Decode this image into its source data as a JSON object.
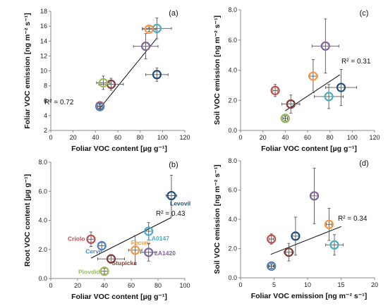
{
  "colors": {
    "Levovil": "#1f4e79",
    "LA0147": "#4bacc6",
    "Fecum": "#f79646",
    "LA1420": "#8064a2",
    "Criolo": "#c0504d",
    "Cervil": "#4f81bd",
    "Stupicke": "#843c39",
    "Plovdid": "#9bbb59"
  },
  "chart_data": [
    {
      "panel": "(a)",
      "type": "scatter",
      "xlabel": "Foliar VOC content [µg g⁻¹]",
      "ylabel": "Foliar VOC emission [ng m⁻² s⁻¹]",
      "xlim": [
        0,
        120
      ],
      "ylim": [
        2,
        18
      ],
      "xticks": [
        0,
        20,
        40,
        60,
        80,
        100,
        120
      ],
      "yticks": [
        2,
        4,
        6,
        8,
        10,
        12,
        14,
        16,
        18
      ],
      "r2": "R² = 0.72",
      "trend": [
        [
          44,
          5.0
        ],
        [
          95,
          14.4
        ]
      ],
      "points": [
        {
          "cultivar": "Levovil",
          "x": 95,
          "y": 9.5,
          "xerr": 10,
          "yerr": 0.9
        },
        {
          "cultivar": "LA0147",
          "x": 95,
          "y": 15.7,
          "xerr": 13,
          "yerr": 1.4
        },
        {
          "cultivar": "Fecum",
          "x": 88,
          "y": 15.6,
          "xerr": 6,
          "yerr": 0.3
        },
        {
          "cultivar": "LA1420",
          "x": 85,
          "y": 13.3,
          "xerr": 11,
          "yerr": 1.7
        },
        {
          "cultivar": "Stupicke",
          "x": 54,
          "y": 8.2,
          "xerr": 11,
          "yerr": 0.8
        },
        {
          "cultivar": "Plovdid",
          "x": 47,
          "y": 8.4,
          "xerr": 6,
          "yerr": 0.9
        },
        {
          "cultivar": "Criolo",
          "x": 44,
          "y": 5.3,
          "xerr": 3,
          "yerr": 0.3
        },
        {
          "cultivar": "Cervil",
          "x": 44,
          "y": 5.2,
          "xerr": 2,
          "yerr": 0.3
        }
      ]
    },
    {
      "panel": "(c)",
      "type": "scatter",
      "xlabel": "Foliar VOC content [µg g⁻¹]",
      "ylabel": "Soil VOC emission [ng m⁻² s⁻¹]",
      "xlim": [
        0,
        120
      ],
      "ylim": [
        0,
        8
      ],
      "xticks": [
        0,
        20,
        40,
        60,
        80,
        100,
        120
      ],
      "yticks": [
        "0.0",
        "2.0",
        "4.0",
        "6.0",
        "8.0"
      ],
      "r2": "R² = 0.31",
      "trend": [
        [
          40,
          1.3
        ],
        [
          89,
          3.7
        ]
      ],
      "points": [
        {
          "cultivar": "Levovil",
          "x": 90,
          "y": 2.85,
          "xerr": 14,
          "yerr": 1.2
        },
        {
          "cultivar": "LA0147",
          "x": 79,
          "y": 2.25,
          "xerr": 13,
          "yerr": 0.8
        },
        {
          "cultivar": "Fecum",
          "x": 65,
          "y": 3.6,
          "xerr": 4,
          "yerr": 1.1
        },
        {
          "cultivar": "LA1420",
          "x": 76,
          "y": 5.6,
          "xerr": 12,
          "yerr": 1.8
        },
        {
          "cultivar": "Criolo",
          "x": 31,
          "y": 2.65,
          "xerr": 2,
          "yerr": 0.4
        },
        {
          "cultivar": "Stupicke",
          "x": 45,
          "y": 1.75,
          "xerr": 8,
          "yerr": 0.6
        },
        {
          "cultivar": "Cervil",
          "x": 40,
          "y": 0.8,
          "xerr": 2,
          "yerr": 0.15
        },
        {
          "cultivar": "Plovdid",
          "x": 40,
          "y": 0.8,
          "xerr": 2,
          "yerr": 0.15
        }
      ]
    },
    {
      "panel": "(b)",
      "type": "scatter",
      "xlabel": "Foliar VOC content [µg g⁻¹]",
      "ylabel": "Root VOC content [µg g⁻¹]",
      "xlim": [
        0,
        100
      ],
      "ylim": [
        0,
        8
      ],
      "xticks": [
        0,
        20,
        40,
        60,
        80,
        100
      ],
      "yticks": [
        "0.0",
        "2.0",
        "4.0",
        "6.0",
        "8.0"
      ],
      "r2": "R² = 0.43",
      "trend": [
        [
          30,
          1.4
        ],
        [
          90,
          4.2
        ]
      ],
      "points": [
        {
          "cultivar": "Levovil",
          "x": 90,
          "y": 5.7,
          "xerr": 4,
          "yerr": 1.4,
          "label": "Levovil"
        },
        {
          "cultivar": "LA0147",
          "x": 73,
          "y": 3.25,
          "xerr": 3,
          "yerr": 0.6,
          "label": "LA0147"
        },
        {
          "cultivar": "Fecum",
          "x": 63,
          "y": 1.95,
          "xerr": 5,
          "yerr": 1.0,
          "label": "Fecum"
        },
        {
          "cultivar": "LA1420",
          "x": 73,
          "y": 1.8,
          "xerr": 6,
          "yerr": 0.6,
          "label": "LA1420"
        },
        {
          "cultivar": "Criolo",
          "x": 30,
          "y": 2.7,
          "xerr": 3,
          "yerr": 0.5,
          "label": "Criolo"
        },
        {
          "cultivar": "Cervil",
          "x": 38,
          "y": 2.25,
          "xerr": 3,
          "yerr": 0.3,
          "label": "Cervil"
        },
        {
          "cultivar": "Stupicke",
          "x": 45,
          "y": 1.35,
          "xerr": 10,
          "yerr": 0.3,
          "label": "Stupicke"
        },
        {
          "cultivar": "Plovdid",
          "x": 40,
          "y": 0.5,
          "xerr": 3,
          "yerr": 0.2,
          "label": "Plovdid"
        }
      ]
    },
    {
      "panel": "(d)",
      "type": "scatter",
      "xlabel": "Foliar VOC emission [ng m⁻² s⁻¹]",
      "ylabel": "Soil VOC emission [ng m⁻² s⁻¹]",
      "xlim": [
        0,
        20
      ],
      "ylim": [
        0,
        8
      ],
      "xticks": [
        0,
        5,
        10,
        15,
        20
      ],
      "yticks": [
        "0.0",
        "2.0",
        "4.0",
        "6.0",
        "8.0"
      ],
      "r2": "R² = 0.34",
      "trend": [
        [
          4.5,
          1.6
        ],
        [
          15.0,
          3.5
        ]
      ],
      "points": [
        {
          "cultivar": "LA1420",
          "x": 11.0,
          "y": 5.6,
          "xerr": 0.6,
          "yerr": 1.9
        },
        {
          "cultivar": "Fecum",
          "x": 13.2,
          "y": 3.65,
          "xerr": 0.4,
          "yerr": 1.1
        },
        {
          "cultivar": "Levovil",
          "x": 8.2,
          "y": 2.85,
          "xerr": 0.5,
          "yerr": 1.3
        },
        {
          "cultivar": "Criolo",
          "x": 4.6,
          "y": 2.65,
          "xerr": 0.3,
          "yerr": 0.35
        },
        {
          "cultivar": "LA0147",
          "x": 14.0,
          "y": 2.25,
          "xerr": 1.3,
          "yerr": 0.7
        },
        {
          "cultivar": "Stupicke",
          "x": 7.2,
          "y": 1.75,
          "xerr": 0.7,
          "yerr": 0.6
        },
        {
          "cultivar": "Plovdid",
          "x": 4.6,
          "y": 0.8,
          "xerr": 0.4,
          "yerr": 0.15
        },
        {
          "cultivar": "Cervil",
          "x": 4.6,
          "y": 0.8,
          "xerr": 0.3,
          "yerr": 0.15
        }
      ]
    }
  ]
}
